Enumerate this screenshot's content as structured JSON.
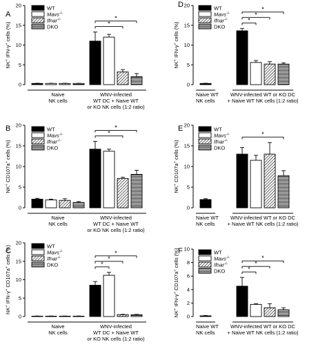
{
  "legend": [
    {
      "label": "WT",
      "pattern": "solid"
    },
    {
      "label": "Mavs",
      "sup": "-/-",
      "pattern": "open"
    },
    {
      "label": "Ifnar",
      "sup": "-/-",
      "pattern": "hatch"
    },
    {
      "label": "DKO",
      "pattern": "horizontal"
    }
  ],
  "colors": {
    "ink": "#000000",
    "background": "#ffffff"
  },
  "chart_data": [
    {
      "panel": "A",
      "type": "bar",
      "ylim": [
        0,
        20
      ],
      "yticks": [
        0,
        5,
        10,
        15,
        20
      ],
      "ylabel": {
        "base": "NK",
        "sup1": "+",
        "mid": " IFN-γ",
        "sup2": "+",
        "tail": " cells (%)"
      },
      "groups": [
        {
          "label_lines": [
            "Naive",
            "NK cells"
          ],
          "values": [
            0.3,
            0.3,
            0.3,
            0.3
          ],
          "errors": [
            0.05,
            0.05,
            0.05,
            0.05
          ]
        },
        {
          "label_lines": [
            "WNV-infected",
            "WT DC + Naive WT",
            "or KO NK cells (1:2 ratio)"
          ],
          "values": [
            11.0,
            12.0,
            3.2,
            2.0
          ],
          "errors": [
            2.3,
            0.7,
            0.6,
            0.8
          ]
        }
      ],
      "significance": [
        {
          "from": 0,
          "to": 2,
          "label": "*"
        },
        {
          "from": 0,
          "to": 3,
          "label": "*"
        }
      ]
    },
    {
      "panel": "B",
      "type": "bar",
      "ylim": [
        0,
        20
      ],
      "yticks": [
        0,
        5,
        10,
        15,
        20
      ],
      "ylabel": {
        "base": "NK",
        "sup1": "+",
        "mid": " CD107a",
        "sup2": "+",
        "tail": " cells (%)"
      },
      "groups": [
        {
          "label_lines": [
            "Naive",
            "NK cells"
          ],
          "values": [
            2.1,
            1.9,
            1.8,
            1.3
          ],
          "errors": [
            0.2,
            0.2,
            0.4,
            0.2
          ]
        },
        {
          "label_lines": [
            "WNV-infected",
            "WT DC + Naive WT",
            "or KO NK cells (1:2 ratio)"
          ],
          "values": [
            14.2,
            13.7,
            7.1,
            8.1
          ],
          "errors": [
            1.9,
            0.5,
            0.3,
            1.0
          ]
        }
      ],
      "significance": [
        {
          "from": 0,
          "to": 2,
          "label": "*"
        },
        {
          "from": 0,
          "to": 3,
          "label": "*"
        }
      ]
    },
    {
      "panel": "C",
      "type": "bar",
      "ylim": [
        0,
        20
      ],
      "yticks": [
        0,
        5,
        10,
        15,
        20
      ],
      "ylabel": {
        "base": "NK",
        "sup1": "+",
        "mid": " IFN-γ",
        "sup2": "+",
        "tail": " CD107a",
        "sup3": "+",
        "end": " cells (%)"
      },
      "groups": [
        {
          "label_lines": [
            "Naive",
            "NK cells"
          ],
          "values": [
            0.1,
            0.1,
            0.1,
            0.1
          ],
          "errors": [
            0.05,
            0.05,
            0.05,
            0.05
          ]
        },
        {
          "label_lines": [
            "WNV-infected",
            "WT DC + Naive WT",
            "or KO NK cells (1:2 ratio)"
          ],
          "values": [
            8.5,
            11.2,
            0.5,
            0.5
          ],
          "errors": [
            1.0,
            0.8,
            0.1,
            0.1
          ]
        }
      ],
      "significance": [
        {
          "from": 0,
          "to": 1,
          "label": "*"
        },
        {
          "from": 0,
          "to": 2,
          "label": "*"
        },
        {
          "from": 0,
          "to": 3,
          "label": "*"
        }
      ]
    },
    {
      "panel": "D",
      "type": "bar",
      "ylim": [
        0,
        20
      ],
      "yticks": [
        0,
        5,
        10,
        15,
        20
      ],
      "ylabel": {
        "base": "NK",
        "sup1": "+",
        "mid": " IFN-γ",
        "sup2": "+",
        "tail": " cells (%)"
      },
      "groups": [
        {
          "label_lines": [
            "Naive WT",
            "NK cells"
          ],
          "values": [
            0.3
          ],
          "errors": [
            0.05
          ]
        },
        {
          "label_lines": [
            "WNV-infected WT or KO DC",
            "+ Naive WT NK cells (1:2 ratio)"
          ],
          "values": [
            13.6,
            5.6,
            5.2,
            5.2
          ],
          "errors": [
            0.6,
            0.5,
            0.6,
            0.3
          ]
        }
      ],
      "significance": [
        {
          "from": 0,
          "to": 1,
          "label": "*"
        },
        {
          "from": 0,
          "to": 2,
          "label": "*"
        },
        {
          "from": 0,
          "to": 3,
          "label": "*"
        }
      ]
    },
    {
      "panel": "E",
      "type": "bar",
      "ylim": [
        0,
        20
      ],
      "yticks": [
        0,
        5,
        10,
        15,
        20
      ],
      "ylabel": {
        "base": "NK",
        "sup1": "+",
        "mid": " CD107a",
        "sup2": "+",
        "tail": " cells (%)"
      },
      "groups": [
        {
          "label_lines": [
            "Naive WT",
            "NK cells"
          ],
          "values": [
            2.0
          ],
          "errors": [
            0.2
          ]
        },
        {
          "label_lines": [
            "WNV-infected WT or KO DC",
            "+ Naive WT NK cells (1:2 ratio)"
          ],
          "values": [
            13.0,
            11.5,
            13.0,
            7.8
          ],
          "errors": [
            1.6,
            1.2,
            2.8,
            1.2
          ]
        }
      ],
      "significance": [
        {
          "from": 0,
          "to": 3,
          "label": "*"
        }
      ]
    },
    {
      "panel": "F",
      "type": "bar",
      "ylim": [
        0,
        10
      ],
      "yticks": [
        0,
        2,
        4,
        6,
        8,
        10
      ],
      "ylabel": {
        "base": "NK",
        "sup1": "+",
        "mid": " IFN-γ",
        "sup2": "+",
        "tail": " CD107a",
        "sup3": "+",
        "end": " cells (%)"
      },
      "groups": [
        {
          "label_lines": [
            "Naive WT",
            "NK cells"
          ],
          "values": [
            0.1
          ],
          "errors": [
            0.05
          ]
        },
        {
          "label_lines": [
            "WNV-infected WT or KO DC",
            "+ Naive WT NK cells (1:2 ratio)"
          ],
          "values": [
            4.5,
            1.8,
            1.3,
            1.0
          ],
          "errors": [
            1.3,
            0.1,
            0.6,
            0.3
          ]
        }
      ],
      "significance": [
        {
          "from": 0,
          "to": 1,
          "label": "*"
        },
        {
          "from": 0,
          "to": 2,
          "label": "*"
        },
        {
          "from": 0,
          "to": 3,
          "label": "*"
        }
      ]
    }
  ]
}
